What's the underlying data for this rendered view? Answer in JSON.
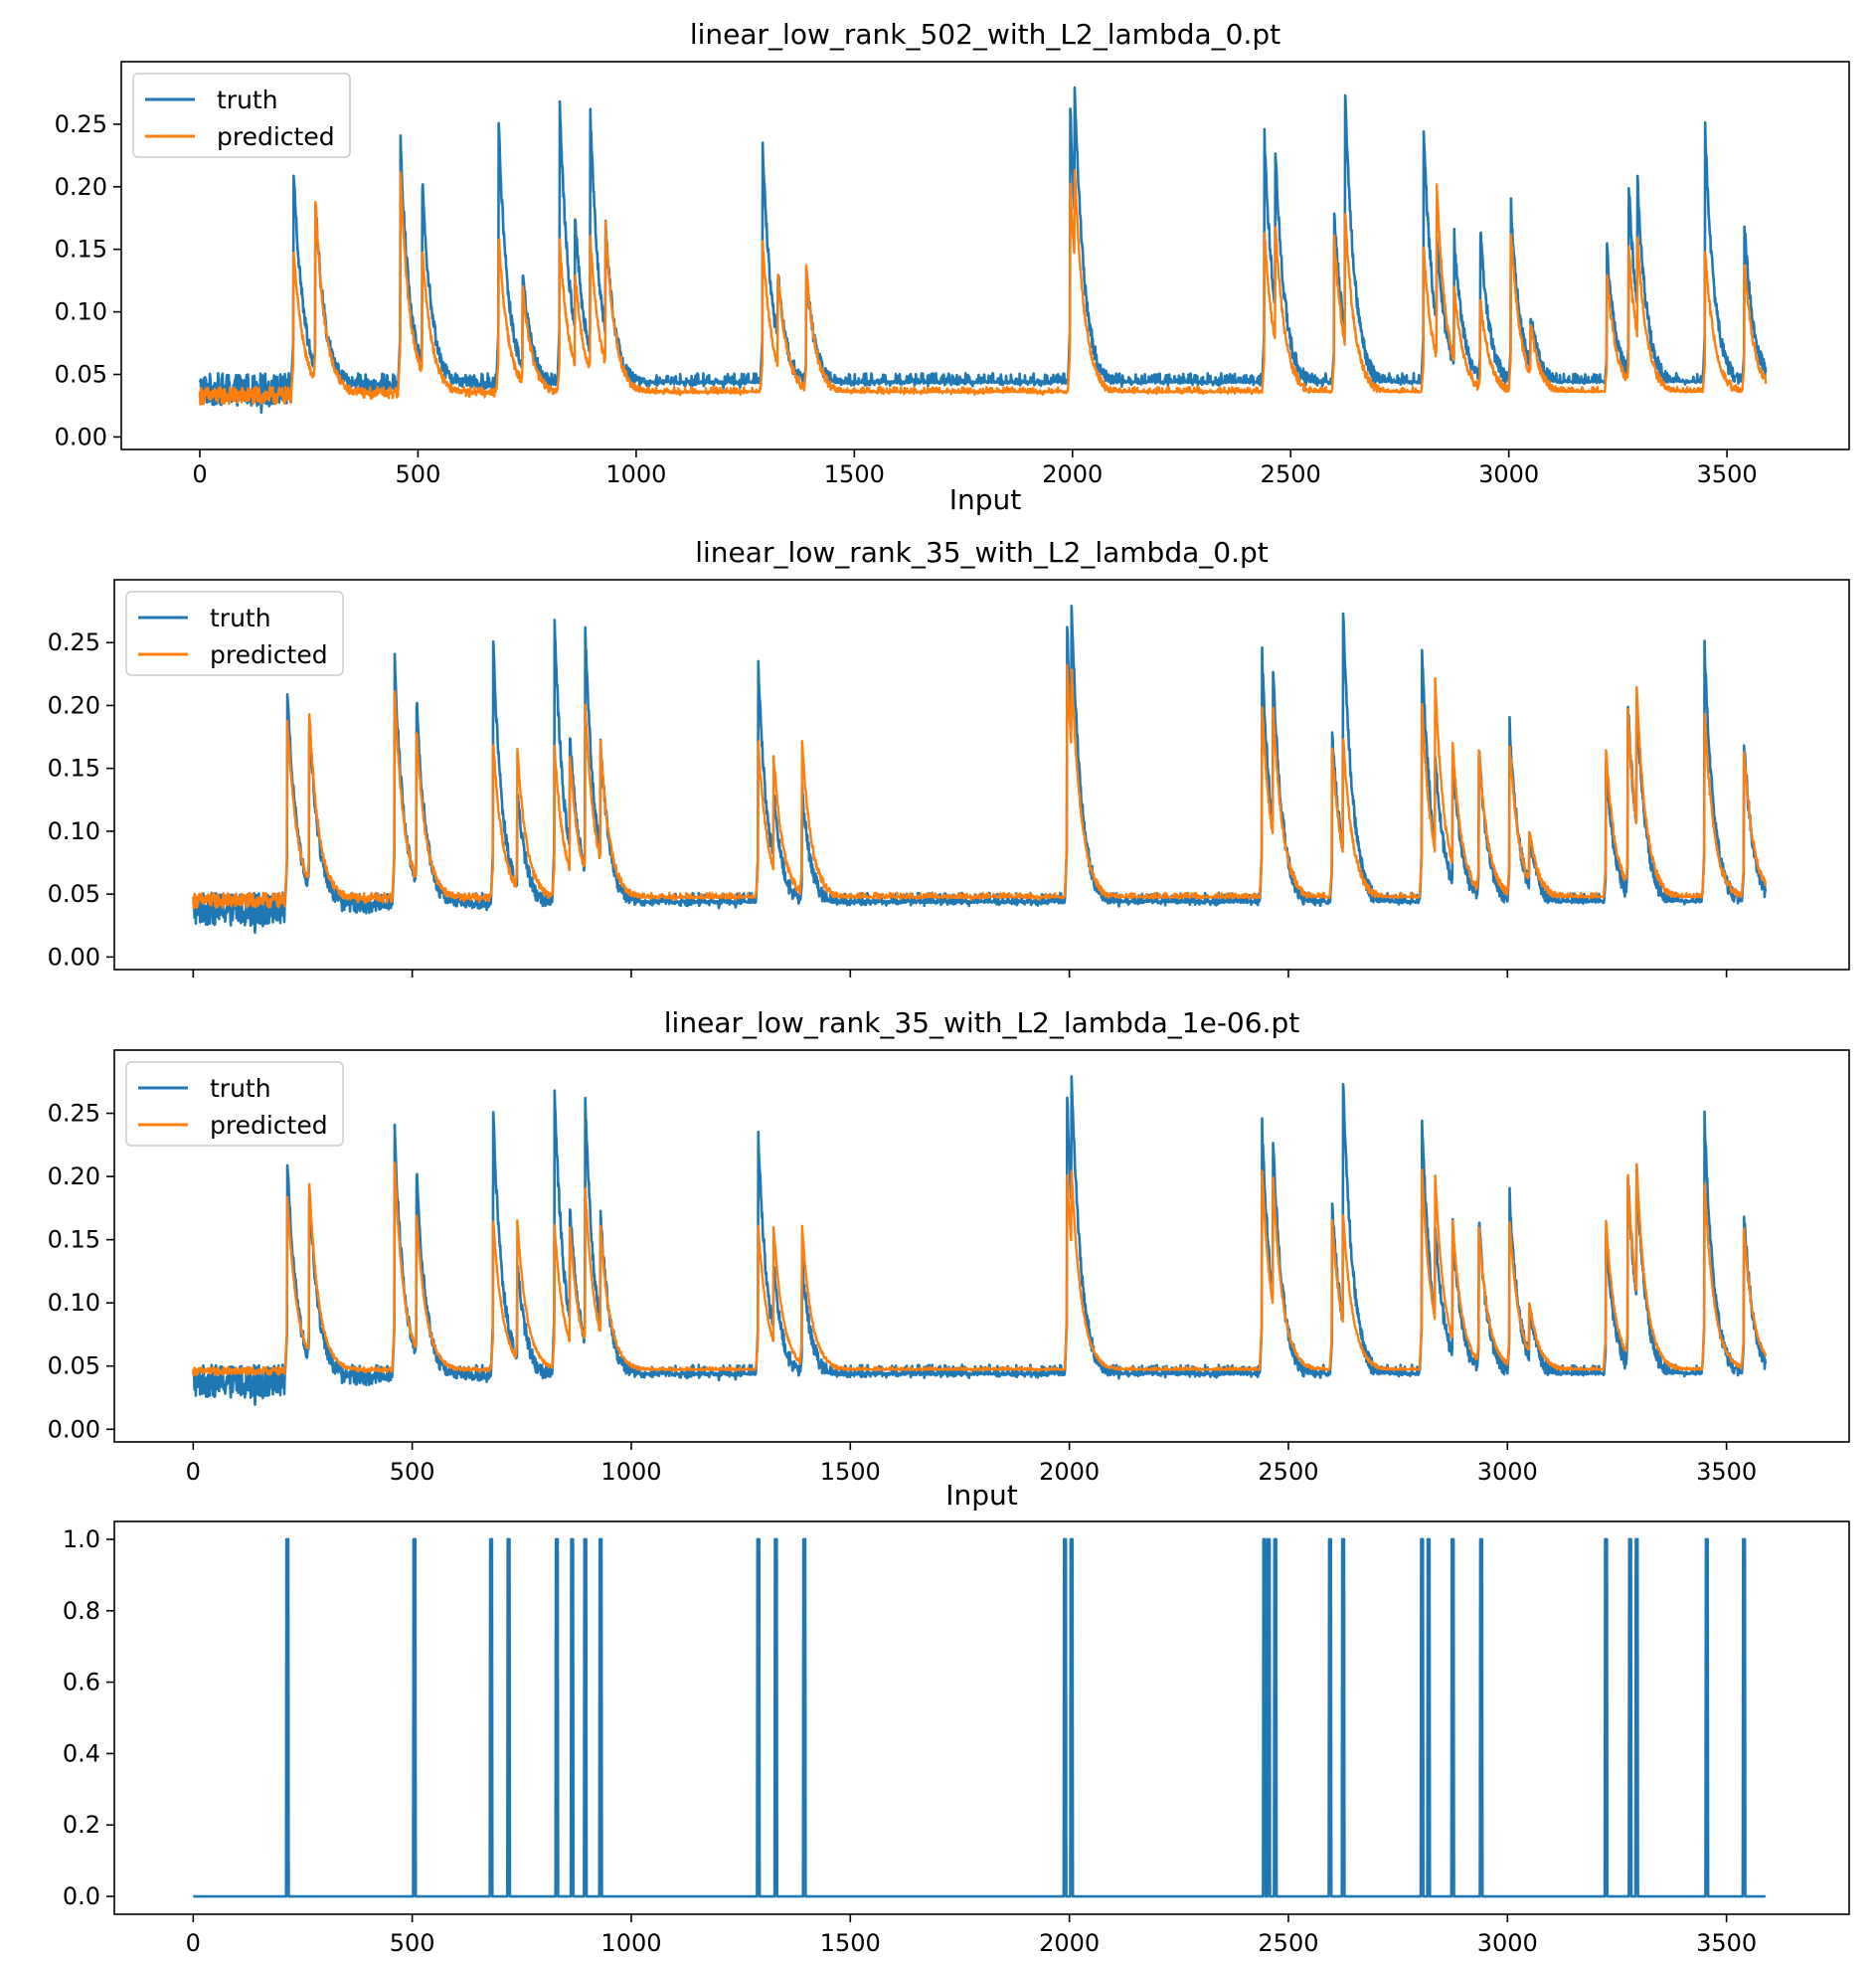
{
  "colors": {
    "truth": "#1f77b4",
    "predicted": "#ff7f0e",
    "input": "#1f77b4"
  },
  "x_tick_labels": [
    "0",
    "500",
    "1000",
    "1500",
    "2000",
    "2500",
    "3000",
    "3500"
  ],
  "chart_data": [
    {
      "type": "line",
      "title": "linear_low_rank_502_with_L2_lambda_0.pt",
      "xlabel": "Input",
      "ylabel": "",
      "xlim": [
        -180,
        3780
      ],
      "ylim": [
        -0.01,
        0.3
      ],
      "x_ticks": [
        0,
        500,
        1000,
        1500,
        2000,
        2500,
        3000,
        3500
      ],
      "y_ticks": [
        0.0,
        0.05,
        0.1,
        0.15,
        0.2,
        0.25
      ],
      "y_tick_labels": [
        "0.00",
        "0.05",
        "0.10",
        "0.15",
        "0.20",
        "0.25"
      ],
      "show_x_tick_labels": true,
      "legend": "top-left",
      "series": [
        {
          "name": "truth",
          "baseline": 0.038,
          "noise": 0.013,
          "peaks": [
            [
              215,
              0.215
            ],
            [
              265,
              0.19
            ],
            [
              460,
              0.235
            ],
            [
              510,
              0.205
            ],
            [
              685,
              0.248
            ],
            [
              740,
              0.13
            ],
            [
              825,
              0.268
            ],
            [
              860,
              0.18
            ],
            [
              895,
              0.258
            ],
            [
              930,
              0.17
            ],
            [
              1290,
              0.23
            ],
            [
              1325,
              0.13
            ],
            [
              1390,
              0.13
            ],
            [
              1995,
              0.26
            ],
            [
              2005,
              0.283
            ],
            [
              2440,
              0.24
            ],
            [
              2465,
              0.23
            ],
            [
              2600,
              0.18
            ],
            [
              2625,
              0.277
            ],
            [
              2805,
              0.245
            ],
            [
              2835,
              0.16
            ],
            [
              2875,
              0.16
            ],
            [
              2935,
              0.165
            ],
            [
              3005,
              0.185
            ],
            [
              3050,
              0.1
            ],
            [
              3225,
              0.15
            ],
            [
              3275,
              0.2
            ],
            [
              3295,
              0.205
            ],
            [
              3450,
              0.245
            ],
            [
              3540,
              0.17
            ]
          ]
        },
        {
          "name": "predicted",
          "baseline": 0.033,
          "noise": 0.007,
          "peaks": [
            [
              215,
              0.15
            ],
            [
              265,
              0.19
            ],
            [
              460,
              0.21
            ],
            [
              510,
              0.15
            ],
            [
              685,
              0.16
            ],
            [
              740,
              0.12
            ],
            [
              825,
              0.155
            ],
            [
              860,
              0.13
            ],
            [
              895,
              0.16
            ],
            [
              930,
              0.17
            ],
            [
              1290,
              0.155
            ],
            [
              1325,
              0.13
            ],
            [
              1390,
              0.135
            ],
            [
              1995,
              0.2
            ],
            [
              2005,
              0.215
            ],
            [
              2440,
              0.165
            ],
            [
              2465,
              0.17
            ],
            [
              2600,
              0.16
            ],
            [
              2625,
              0.18
            ],
            [
              2805,
              0.15
            ],
            [
              2835,
              0.2
            ],
            [
              2875,
              0.12
            ],
            [
              2935,
              0.11
            ],
            [
              3005,
              0.165
            ],
            [
              3050,
              0.09
            ],
            [
              3225,
              0.13
            ],
            [
              3275,
              0.15
            ],
            [
              3295,
              0.16
            ],
            [
              3450,
              0.15
            ],
            [
              3540,
              0.14
            ]
          ]
        }
      ]
    },
    {
      "type": "line",
      "title": "linear_low_rank_35_with_L2_lambda_0.pt",
      "xlabel": "",
      "ylabel": "",
      "xlim": [
        -180,
        3780
      ],
      "ylim": [
        -0.01,
        0.3
      ],
      "x_ticks": [
        0,
        500,
        1000,
        1500,
        2000,
        2500,
        3000,
        3500
      ],
      "y_ticks": [
        0.0,
        0.05,
        0.1,
        0.15,
        0.2,
        0.25
      ],
      "y_tick_labels": [
        "0.00",
        "0.05",
        "0.10",
        "0.15",
        "0.20",
        "0.25"
      ],
      "show_x_tick_labels": false,
      "legend": "top-left",
      "series": [
        {
          "name": "truth",
          "baseline": 0.038,
          "noise": 0.013,
          "peaks": [
            [
              215,
              0.215
            ],
            [
              265,
              0.19
            ],
            [
              460,
              0.235
            ],
            [
              510,
              0.205
            ],
            [
              685,
              0.248
            ],
            [
              740,
              0.13
            ],
            [
              825,
              0.268
            ],
            [
              860,
              0.18
            ],
            [
              895,
              0.258
            ],
            [
              930,
              0.17
            ],
            [
              1290,
              0.23
            ],
            [
              1325,
              0.13
            ],
            [
              1390,
              0.13
            ],
            [
              1995,
              0.26
            ],
            [
              2005,
              0.283
            ],
            [
              2440,
              0.24
            ],
            [
              2465,
              0.23
            ],
            [
              2600,
              0.18
            ],
            [
              2625,
              0.277
            ],
            [
              2805,
              0.245
            ],
            [
              2835,
              0.16
            ],
            [
              2875,
              0.16
            ],
            [
              2935,
              0.165
            ],
            [
              3005,
              0.185
            ],
            [
              3050,
              0.1
            ],
            [
              3225,
              0.15
            ],
            [
              3275,
              0.2
            ],
            [
              3295,
              0.205
            ],
            [
              3450,
              0.245
            ],
            [
              3540,
              0.17
            ]
          ]
        },
        {
          "name": "predicted",
          "baseline": 0.045,
          "noise": 0.006,
          "peaks": [
            [
              215,
              0.19
            ],
            [
              265,
              0.195
            ],
            [
              460,
              0.21
            ],
            [
              510,
              0.18
            ],
            [
              685,
              0.17
            ],
            [
              740,
              0.165
            ],
            [
              825,
              0.165
            ],
            [
              860,
              0.16
            ],
            [
              895,
              0.2
            ],
            [
              930,
              0.17
            ],
            [
              1290,
              0.17
            ],
            [
              1325,
              0.16
            ],
            [
              1390,
              0.17
            ],
            [
              1995,
              0.23
            ],
            [
              2005,
              0.23
            ],
            [
              2440,
              0.2
            ],
            [
              2465,
              0.2
            ],
            [
              2600,
              0.165
            ],
            [
              2625,
              0.175
            ],
            [
              2805,
              0.2
            ],
            [
              2835,
              0.22
            ],
            [
              2875,
              0.17
            ],
            [
              2935,
              0.165
            ],
            [
              3005,
              0.17
            ],
            [
              3050,
              0.1
            ],
            [
              3225,
              0.165
            ],
            [
              3275,
              0.195
            ],
            [
              3295,
              0.215
            ],
            [
              3450,
              0.195
            ],
            [
              3540,
              0.165
            ]
          ]
        }
      ]
    },
    {
      "type": "line",
      "title": "linear_low_rank_35_with_L2_lambda_1e-06.pt",
      "xlabel": "Input",
      "ylabel": "",
      "xlim": [
        -180,
        3780
      ],
      "ylim": [
        -0.01,
        0.3
      ],
      "x_ticks": [
        0,
        500,
        1000,
        1500,
        2000,
        2500,
        3000,
        3500
      ],
      "y_ticks": [
        0.0,
        0.05,
        0.1,
        0.15,
        0.2,
        0.25
      ],
      "y_tick_labels": [
        "0.00",
        "0.05",
        "0.10",
        "0.15",
        "0.20",
        "0.25"
      ],
      "show_x_tick_labels": true,
      "legend": "top-left",
      "series": [
        {
          "name": "truth",
          "baseline": 0.038,
          "noise": 0.013,
          "peaks": [
            [
              215,
              0.215
            ],
            [
              265,
              0.19
            ],
            [
              460,
              0.235
            ],
            [
              510,
              0.205
            ],
            [
              685,
              0.248
            ],
            [
              740,
              0.13
            ],
            [
              825,
              0.268
            ],
            [
              860,
              0.18
            ],
            [
              895,
              0.258
            ],
            [
              930,
              0.17
            ],
            [
              1290,
              0.23
            ],
            [
              1325,
              0.13
            ],
            [
              1390,
              0.13
            ],
            [
              1995,
              0.26
            ],
            [
              2005,
              0.283
            ],
            [
              2440,
              0.24
            ],
            [
              2465,
              0.23
            ],
            [
              2600,
              0.18
            ],
            [
              2625,
              0.277
            ],
            [
              2805,
              0.245
            ],
            [
              2835,
              0.16
            ],
            [
              2875,
              0.16
            ],
            [
              2935,
              0.165
            ],
            [
              3005,
              0.185
            ],
            [
              3050,
              0.1
            ],
            [
              3225,
              0.15
            ],
            [
              3275,
              0.2
            ],
            [
              3295,
              0.205
            ],
            [
              3450,
              0.245
            ],
            [
              3540,
              0.17
            ]
          ]
        },
        {
          "name": "predicted",
          "baseline": 0.046,
          "noise": 0.003,
          "peaks": [
            [
              215,
              0.185
            ],
            [
              265,
              0.195
            ],
            [
              460,
              0.21
            ],
            [
              510,
              0.17
            ],
            [
              685,
              0.165
            ],
            [
              740,
              0.165
            ],
            [
              825,
              0.16
            ],
            [
              860,
              0.16
            ],
            [
              895,
              0.19
            ],
            [
              930,
              0.16
            ],
            [
              1290,
              0.16
            ],
            [
              1325,
              0.16
            ],
            [
              1390,
              0.16
            ],
            [
              1995,
              0.2
            ],
            [
              2005,
              0.205
            ],
            [
              2440,
              0.205
            ],
            [
              2465,
              0.2
            ],
            [
              2600,
              0.165
            ],
            [
              2625,
              0.17
            ],
            [
              2805,
              0.205
            ],
            [
              2835,
              0.2
            ],
            [
              2875,
              0.165
            ],
            [
              2935,
              0.16
            ],
            [
              3005,
              0.165
            ],
            [
              3050,
              0.1
            ],
            [
              3225,
              0.165
            ],
            [
              3275,
              0.2
            ],
            [
              3295,
              0.21
            ],
            [
              3450,
              0.195
            ],
            [
              3540,
              0.16
            ]
          ]
        }
      ]
    },
    {
      "type": "line",
      "title": "",
      "xlabel": "",
      "ylabel": "",
      "xlim": [
        -180,
        3780
      ],
      "ylim": [
        -0.05,
        1.05
      ],
      "x_ticks": [
        0,
        500,
        1000,
        1500,
        2000,
        2500,
        3000,
        3500
      ],
      "y_ticks": [
        0.0,
        0.2,
        0.4,
        0.6,
        0.8,
        1.0
      ],
      "y_tick_labels": [
        "0.0",
        "0.2",
        "0.4",
        "0.6",
        "0.8",
        "1.0"
      ],
      "show_x_tick_labels": true,
      "legend": "none",
      "series": [
        {
          "name": "",
          "baseline": 0,
          "noise": 0,
          "pulses": [
            215,
            505,
            680,
            720,
            830,
            865,
            895,
            930,
            1290,
            1330,
            1395,
            1990,
            2005,
            2445,
            2455,
            2470,
            2595,
            2625,
            2805,
            2820,
            2875,
            2940,
            3225,
            3280,
            3295,
            3455,
            3540
          ]
        }
      ]
    }
  ]
}
